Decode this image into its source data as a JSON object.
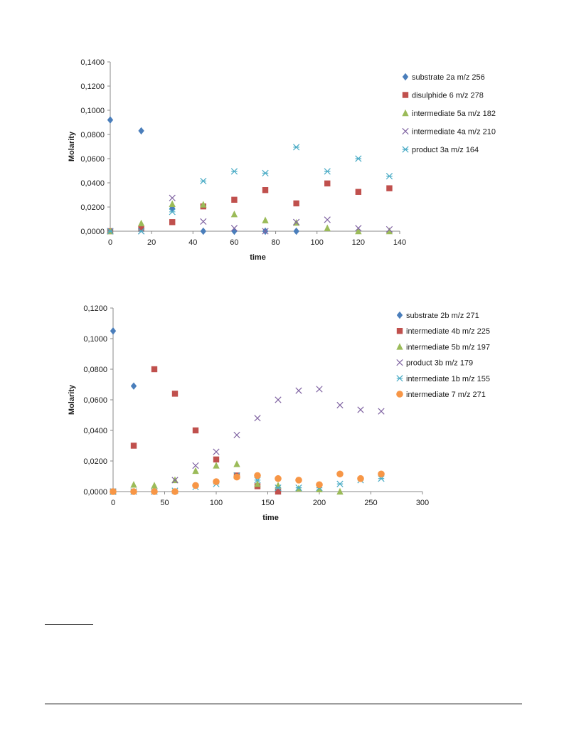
{
  "chart_data": [
    {
      "type": "scatter",
      "title": "",
      "xlabel": "time",
      "ylabel": "Molarity",
      "xlim": [
        0,
        140
      ],
      "ylim": [
        0,
        0.14
      ],
      "xticks": [
        0,
        20,
        40,
        60,
        80,
        100,
        120,
        140
      ],
      "xtick_labels": [
        "0",
        "20",
        "40",
        "60",
        "80",
        "100",
        "120",
        "140"
      ],
      "yticks": [
        0,
        0.02,
        0.04,
        0.06,
        0.08,
        0.1,
        0.12,
        0.14
      ],
      "ytick_labels": [
        "0,0000",
        "0,0200",
        "0,0400",
        "0,0600",
        "0,0800",
        "0,1000",
        "0,1200",
        "0,1400"
      ],
      "grid": false,
      "legend": "right",
      "series": [
        {
          "name": "substrate 2a m/z 256",
          "marker": "diamond",
          "color": "#4a7ebb",
          "x": [
            0,
            15,
            30,
            45,
            60,
            75,
            90
          ],
          "y": [
            0.092,
            0.083,
            0.019,
            0.0,
            0.0,
            0.0,
            0.0
          ]
        },
        {
          "name": "disulphide 6 m/z 278",
          "marker": "square",
          "color": "#c0504d",
          "x": [
            0,
            15,
            30,
            45,
            60,
            75,
            90,
            105,
            120,
            135
          ],
          "y": [
            0.0,
            0.002,
            0.0075,
            0.0205,
            0.026,
            0.034,
            0.023,
            0.0395,
            0.0325,
            0.0355
          ]
        },
        {
          "name": "intermediate 5a m/z 182",
          "marker": "triangle",
          "color": "#9bbb59",
          "x": [
            0,
            15,
            30,
            45,
            60,
            75,
            90,
            105,
            120,
            135
          ],
          "y": [
            0.0,
            0.0065,
            0.0225,
            0.022,
            0.014,
            0.009,
            0.007,
            0.0025,
            0.0,
            0.0
          ]
        },
        {
          "name": "intermediate 4a m/z 210",
          "marker": "x",
          "color": "#8064a2",
          "x": [
            0,
            15,
            30,
            45,
            60,
            75,
            90,
            105,
            120,
            135
          ],
          "y": [
            0.0,
            0.0,
            0.0275,
            0.008,
            0.0025,
            0.0,
            0.0075,
            0.0095,
            0.0025,
            0.0015
          ]
        },
        {
          "name": "product 3a m/z 164",
          "marker": "asterisk",
          "color": "#4bacc6",
          "x": [
            0,
            15,
            30,
            45,
            60,
            75,
            90,
            105,
            120,
            135
          ],
          "y": [
            0.0,
            0.0,
            0.016,
            0.0415,
            0.0495,
            0.048,
            0.0695,
            0.0495,
            0.06,
            0.0455
          ]
        }
      ]
    },
    {
      "type": "scatter",
      "title": "",
      "xlabel": "time",
      "ylabel": "Molarity",
      "xlim": [
        0,
        300
      ],
      "ylim": [
        0,
        0.12
      ],
      "xticks": [
        0,
        50,
        100,
        150,
        200,
        250,
        300
      ],
      "xtick_labels": [
        "0",
        "50",
        "100",
        "150",
        "200",
        "250",
        "300"
      ],
      "yticks": [
        0,
        0.02,
        0.04,
        0.06,
        0.08,
        0.1,
        0.12
      ],
      "ytick_labels": [
        "0,0000",
        "0,0200",
        "0,0400",
        "0,0600",
        "0,0800",
        "0,1000",
        "0,1200"
      ],
      "grid": false,
      "legend": "right",
      "series": [
        {
          "name": "substrate 2b m/z 271",
          "marker": "diamond",
          "color": "#4a7ebb",
          "x": [
            0,
            20
          ],
          "y": [
            0.105,
            0.069
          ]
        },
        {
          "name": "intermediate 4b m/z 225",
          "marker": "square",
          "color": "#c0504d",
          "x": [
            0,
            20,
            40,
            60,
            80,
            100,
            120,
            140,
            160
          ],
          "y": [
            0.0,
            0.03,
            0.08,
            0.064,
            0.04,
            0.021,
            0.0105,
            0.0035,
            0.0
          ]
        },
        {
          "name": "intermediate 5b m/z 197",
          "marker": "triangle",
          "color": "#9bbb59",
          "x": [
            0,
            20,
            40,
            60,
            80,
            100,
            120,
            140,
            160,
            180,
            200,
            220
          ],
          "y": [
            0.0,
            0.0045,
            0.004,
            0.0075,
            0.0135,
            0.017,
            0.018,
            0.005,
            0.004,
            0.002,
            0.0015,
            0.0
          ]
        },
        {
          "name": "product 3b m/z 179",
          "marker": "x",
          "color": "#8064a2",
          "x": [
            0,
            20,
            40,
            60,
            80,
            100,
            120,
            140,
            160,
            180,
            200,
            220,
            240,
            260
          ],
          "y": [
            0.0,
            0.0,
            0.0,
            0.0075,
            0.017,
            0.026,
            0.037,
            0.048,
            0.06,
            0.066,
            0.067,
            0.0565,
            0.0535,
            0.0525
          ]
        },
        {
          "name": "intermediate 1b m/z 155",
          "marker": "asterisk",
          "color": "#4bacc6",
          "x": [
            0,
            20,
            40,
            60,
            80,
            100,
            120,
            140,
            160,
            180,
            200,
            220,
            240,
            260
          ],
          "y": [
            0.0,
            0.0,
            0.0,
            0.0005,
            0.003,
            0.005,
            0.0105,
            0.0075,
            0.0025,
            0.0025,
            0.0025,
            0.005,
            0.0075,
            0.0085
          ]
        },
        {
          "name": "intermediate 7 m/z 271",
          "marker": "circle",
          "color": "#f79646",
          "x": [
            0,
            20,
            40,
            60,
            80,
            100,
            120,
            140,
            160,
            180,
            200,
            220,
            240,
            260
          ],
          "y": [
            0.0,
            0.0,
            0.0,
            0.0,
            0.004,
            0.0065,
            0.0095,
            0.0105,
            0.0085,
            0.0075,
            0.0045,
            0.0115,
            0.0085,
            0.0115
          ]
        }
      ]
    }
  ]
}
